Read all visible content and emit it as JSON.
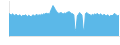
{
  "chart_data": {
    "type": "area",
    "categories": [
      null,
      null,
      null,
      null,
      null,
      null,
      null,
      null,
      null,
      null,
      null,
      null,
      null,
      null,
      null,
      null,
      null,
      null,
      null,
      null,
      null,
      null,
      null,
      null,
      null,
      null,
      null,
      null,
      null,
      null,
      null,
      null,
      null,
      null,
      null,
      null,
      null,
      null,
      null,
      null,
      null,
      null,
      null,
      null,
      null,
      null,
      null,
      null,
      null,
      null,
      null,
      null,
      null,
      null,
      null,
      null,
      null,
      null,
      null,
      null,
      null,
      null,
      null,
      null,
      null,
      null,
      null,
      null,
      null,
      null,
      null,
      null,
      null,
      null,
      null,
      null,
      null,
      null,
      null,
      null,
      null,
      null,
      null,
      null,
      null,
      null,
      null,
      null,
      null,
      null,
      null,
      null,
      null,
      null,
      null,
      null
    ],
    "values": [
      130,
      125,
      120,
      128,
      122,
      118,
      125,
      120,
      115,
      122,
      118,
      112,
      120,
      115,
      122,
      118,
      112,
      120,
      115,
      110,
      118,
      122,
      115,
      120,
      125,
      118,
      122,
      120,
      125,
      122,
      128,
      125,
      132,
      128,
      130,
      125,
      145,
      160,
      175,
      165,
      152,
      142,
      135,
      130,
      132,
      135,
      130,
      128,
      132,
      130,
      135,
      138,
      140,
      135,
      130,
      128,
      122,
      30,
      45,
      115,
      125,
      135,
      128,
      120,
      45,
      35,
      128,
      135,
      130,
      125,
      122,
      118,
      125,
      120,
      128,
      122,
      130,
      125,
      120,
      128,
      122,
      118,
      125,
      120,
      115,
      122,
      118,
      112,
      120,
      115,
      122,
      130,
      125,
      120,
      115,
      122
    ],
    "color": "#5bb8e8",
    "ylim": [
      0,
      201.25
    ],
    "grid": false,
    "tick_labels": false
  }
}
